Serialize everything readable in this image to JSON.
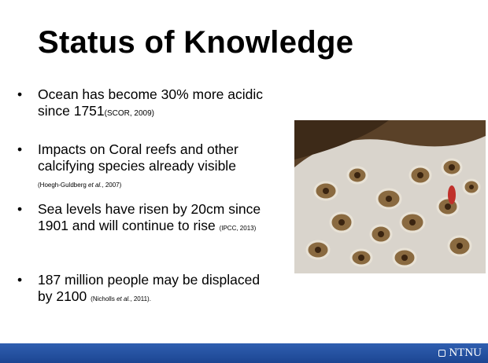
{
  "title": "Status of Knowledge",
  "bullets": [
    {
      "text": "Ocean has become 30% more acidic since 1751",
      "citation": [
        "(SCOR, 2009)"
      ]
    },
    {
      "text": "Impacts on Coral reefs and other calcifying species already visible",
      "citation": [
        "(Hoegh-Guldberg ",
        "et al.",
        ", 2007)"
      ]
    },
    {
      "text": "Sea levels have risen by 20cm since 1901 and will continue to rise",
      "citation": [
        "(IPCC, 2013)"
      ]
    },
    {
      "text": "187 million people may be displaced by 2100",
      "citation": [
        "(Nicholls ",
        "et al.",
        ", 2011)."
      ]
    }
  ],
  "footer": {
    "logo": "NTNU"
  }
}
